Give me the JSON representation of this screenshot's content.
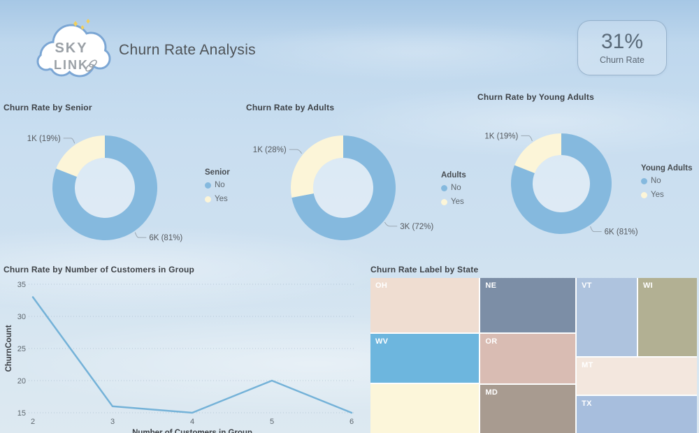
{
  "header": {
    "logo": {
      "line1": "SKY",
      "line2": "LINK"
    },
    "title": "Churn Rate Analysis",
    "kpi": {
      "value": "31%",
      "label": "Churn Rate"
    }
  },
  "colors": {
    "donut_no": "#85b9de",
    "donut_yes": "#fcf5d8",
    "line": "#74b2d8",
    "callout_text": "#55595e"
  },
  "chart_data": [
    {
      "type": "pie",
      "subtype": "donut",
      "title": "Churn Rate by Senior",
      "legend_title": "Senior",
      "legend_position": "right",
      "labels": [
        "No",
        "Yes"
      ],
      "values": [
        6000,
        1000
      ],
      "pcts": [
        81,
        19
      ],
      "value_labels": [
        "6K (81%)",
        "1K (19%)"
      ],
      "colors": [
        "#85b9de",
        "#fcf5d8"
      ]
    },
    {
      "type": "pie",
      "subtype": "donut",
      "title": "Churn Rate by Adults",
      "legend_title": "Adults",
      "legend_position": "right",
      "labels": [
        "No",
        "Yes"
      ],
      "values": [
        3000,
        1000
      ],
      "pcts": [
        72,
        28
      ],
      "value_labels": [
        "3K (72%)",
        "1K (28%)"
      ],
      "colors": [
        "#85b9de",
        "#fcf5d8"
      ]
    },
    {
      "type": "pie",
      "subtype": "donut",
      "title": "Churn Rate by Young Adults",
      "legend_title": "Young Adults",
      "legend_position": "right",
      "labels": [
        "No",
        "Yes"
      ],
      "values": [
        6000,
        1000
      ],
      "pcts": [
        81,
        19
      ],
      "value_labels": [
        "6K (81%)",
        "1K (19%)"
      ],
      "colors": [
        "#85b9de",
        "#fcf5d8"
      ]
    },
    {
      "type": "line",
      "title": "Churn Rate by Number of Customers in Group",
      "xlabel": "Number of Customers in Group",
      "ylabel": "ChurnCount",
      "x": [
        2,
        3,
        4,
        5,
        6
      ],
      "y": [
        33,
        16,
        15,
        20,
        15
      ],
      "ylim": [
        15,
        35
      ],
      "yticks": [
        15,
        20,
        25,
        30,
        35
      ],
      "grid": "dotted",
      "color": "#74b2d8"
    },
    {
      "type": "treemap",
      "title": "Churn Rate Label by State",
      "cells": [
        {
          "label": "OH",
          "color": "#efddd1",
          "x": 0.0,
          "y": 0.0,
          "w": 0.332,
          "h": 0.351
        },
        {
          "label": "WV",
          "color": "#6db6de",
          "x": 0.0,
          "y": 0.36,
          "w": 0.332,
          "h": 0.316
        },
        {
          "label": "",
          "color": "#fcf6da",
          "x": 0.0,
          "y": 0.685,
          "w": 0.332,
          "h": 0.315
        },
        {
          "label": "NE",
          "color": "#7c8ea6",
          "x": 0.337,
          "y": 0.0,
          "w": 0.29,
          "h": 0.351
        },
        {
          "label": "OR",
          "color": "#d9bcb3",
          "x": 0.337,
          "y": 0.36,
          "w": 0.29,
          "h": 0.32
        },
        {
          "label": "MD",
          "color": "#a89b90",
          "x": 0.337,
          "y": 0.689,
          "w": 0.29,
          "h": 0.311
        },
        {
          "label": "VT",
          "color": "#aec3de",
          "x": 0.632,
          "y": 0.0,
          "w": 0.184,
          "h": 0.505
        },
        {
          "label": "WI",
          "color": "#b2b093",
          "x": 0.82,
          "y": 0.0,
          "w": 0.18,
          "h": 0.505
        },
        {
          "label": "MT",
          "color": "#f3e7de",
          "x": 0.632,
          "y": 0.514,
          "w": 0.368,
          "h": 0.238
        },
        {
          "label": "TX",
          "color": "#a7bedd",
          "x": 0.632,
          "y": 0.761,
          "w": 0.368,
          "h": 0.239
        }
      ]
    }
  ]
}
